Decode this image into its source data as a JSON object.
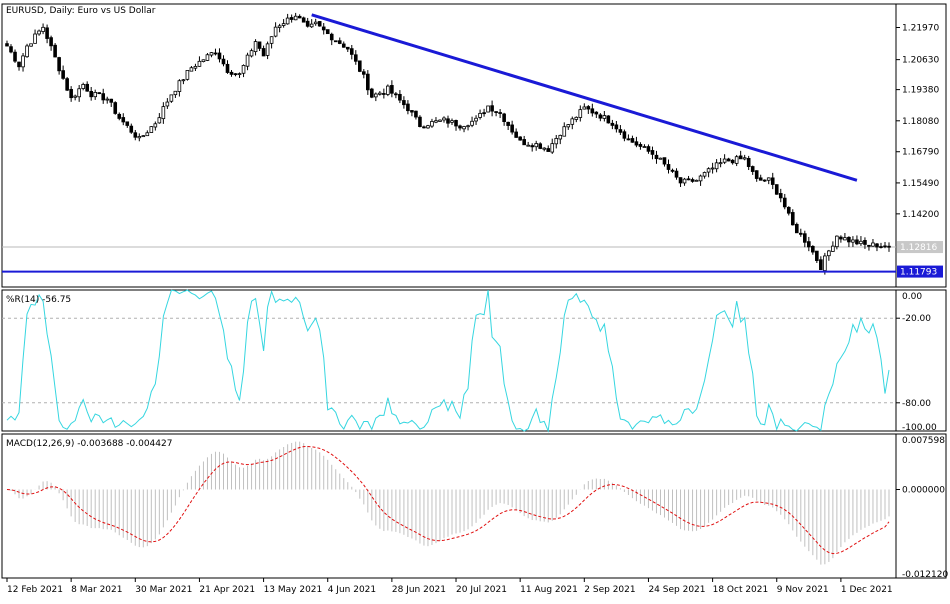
{
  "colors": {
    "background": "#ffffff",
    "frame": "#000000",
    "candles": "#000000",
    "trendline": "#1a1ad6",
    "support_line": "#1a1ad6",
    "price_label_bg": "#c8c8c8",
    "support_label_bg": "#1a1ad6",
    "wpr_line": "#36d6e0",
    "grid_dashed": "#b0b0b0",
    "macd_hist": "#c0c0c0",
    "macd_signal": "#e01010"
  },
  "chart_data": [
    {
      "type": "candlestick",
      "panel": "price",
      "title": "EURUSD, Daily:  Euro vs US Dollar",
      "ylim": [
        1.1115,
        1.2295
      ],
      "y_ticks": [
        "1.21970",
        "1.20630",
        "1.19380",
        "1.18080",
        "1.16790",
        "1.15490",
        "1.14200"
      ],
      "y_tick_values": [
        1.2197,
        1.2063,
        1.1938,
        1.1808,
        1.1679,
        1.1549,
        1.142
      ],
      "current_price": "1.12816",
      "current_price_value": 1.12816,
      "support_level": "1.11793",
      "support_level_value": 1.11793,
      "trendline": {
        "start": [
          "31 May 2021",
          1.225
        ],
        "end": [
          "7 Dec 2021",
          1.156
        ]
      },
      "anchors": [
        [
          "12 Feb 2021",
          1.212
        ],
        [
          "17 Feb 2021",
          1.204
        ],
        [
          "19 Feb 2021",
          1.212
        ],
        [
          "23 Feb 2021",
          1.216
        ],
        [
          "25 Feb 2021",
          1.22
        ],
        [
          "2 Mar 2021",
          1.207
        ],
        [
          "8 Mar 2021",
          1.19
        ],
        [
          "11 Mar 2021",
          1.196
        ],
        [
          "15 Mar 2021",
          1.192
        ],
        [
          "19 Mar 2021",
          1.19
        ],
        [
          "24 Mar 2021",
          1.182
        ],
        [
          "31 Mar 2021",
          1.173
        ],
        [
          "6 Apr 2021",
          1.18
        ],
        [
          "12 Apr 2021",
          1.192
        ],
        [
          "19 Apr 2021",
          1.203
        ],
        [
          "27 Apr 2021",
          1.21
        ],
        [
          "30 Apr 2021",
          1.202
        ],
        [
          "5 May 2021",
          1.2
        ],
        [
          "11 May 2021",
          1.214
        ],
        [
          "13 May 2021",
          1.208
        ],
        [
          "18 May 2021",
          1.22
        ],
        [
          "25 May 2021",
          1.225
        ],
        [
          "28 May 2021",
          1.219
        ],
        [
          "1 Jun 2021",
          1.221
        ],
        [
          "4 Jun 2021",
          1.217
        ],
        [
          "11 Jun 2021",
          1.211
        ],
        [
          "17 Jun 2021",
          1.199
        ],
        [
          "21 Jun 2021",
          1.191
        ],
        [
          "25 Jun 2021",
          1.194
        ],
        [
          "2 Jul 2021",
          1.186
        ],
        [
          "7 Jul 2021",
          1.179
        ],
        [
          "15 Jul 2021",
          1.181
        ],
        [
          "21 Jul 2021",
          1.179
        ],
        [
          "27 Jul 2021",
          1.181
        ],
        [
          "30 Jul 2021",
          1.187
        ],
        [
          "4 Aug 2021",
          1.184
        ],
        [
          "11 Aug 2021",
          1.172
        ],
        [
          "17 Aug 2021",
          1.171
        ],
        [
          "20 Aug 2021",
          1.169
        ],
        [
          "25 Aug 2021",
          1.176
        ],
        [
          "2 Sep 2021",
          1.186
        ],
        [
          "7 Sep 2021",
          1.184
        ],
        [
          "13 Sep 2021",
          1.18
        ],
        [
          "17 Sep 2021",
          1.173
        ],
        [
          "22 Sep 2021",
          1.17
        ],
        [
          "28 Sep 2021",
          1.166
        ],
        [
          "6 Oct 2021",
          1.155
        ],
        [
          "12 Oct 2021",
          1.156
        ],
        [
          "18 Oct 2021",
          1.161
        ],
        [
          "21 Oct 2021",
          1.164
        ],
        [
          "28 Oct 2021",
          1.165
        ],
        [
          "2 Nov 2021",
          1.156
        ],
        [
          "5 Nov 2021",
          1.156
        ],
        [
          "10 Nov 2021",
          1.149
        ],
        [
          "15 Nov 2021",
          1.137
        ],
        [
          "19 Nov 2021",
          1.129
        ],
        [
          "24 Nov 2021",
          1.12
        ],
        [
          "30 Nov 2021",
          1.133
        ],
        [
          "3 Dec 2021",
          1.131
        ],
        [
          "9 Dec 2021",
          1.129
        ],
        [
          "14 Dec 2021",
          1.129
        ],
        [
          "17 Dec 2021",
          1.1282
        ]
      ]
    },
    {
      "type": "line",
      "panel": "williams_r",
      "title": "%R(14) -56.75",
      "ylim": [
        -100,
        0
      ],
      "y_ticks": [
        "0.00",
        "-20.00",
        "-80.00",
        "-100.00"
      ],
      "y_tick_values": [
        0,
        -20,
        -80,
        -100
      ],
      "levels": [
        -20,
        -80
      ],
      "last_value": -56.75
    },
    {
      "type": "bar+line",
      "panel": "macd",
      "title": "MACD(12,26,9) -0.003688 -0.004427",
      "ylim": [
        -0.01212,
        0.007598
      ],
      "y_ticks": [
        "0.007598",
        "0.000000",
        "-0.012120"
      ],
      "y_tick_values": [
        0.007598,
        0,
        -0.01212
      ],
      "macd_last": -0.003688,
      "signal_last": -0.004427
    }
  ],
  "x_axis": {
    "labels": [
      "12 Feb 2021",
      "8 Mar 2021",
      "30 Mar 2021",
      "21 Apr 2021",
      "13 May 2021",
      "4 Jun 2021",
      "28 Jun 2021",
      "20 Jul 2021",
      "11 Aug 2021",
      "2 Sep 2021",
      "24 Sep 2021",
      "18 Oct 2021",
      "9 Nov 2021",
      "1 Dec 2021"
    ],
    "first_date": "12 Feb 2021",
    "last_date": "17 Dec 2021"
  }
}
